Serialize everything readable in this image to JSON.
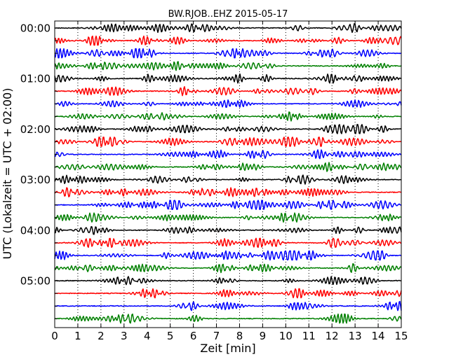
{
  "chart_data": {
    "type": "line",
    "title": "BW.RJOB..EHZ 2015-05-17",
    "xlabel": "Zeit  [min]",
    "ylabel": "UTC (Lokalzeit = UTC + 02:00)",
    "xlim": [
      0,
      15
    ],
    "x_ticks": [
      "0",
      "1",
      "2",
      "3",
      "4",
      "5",
      "6",
      "7",
      "8",
      "9",
      "10",
      "11",
      "12",
      "13",
      "14",
      "15"
    ],
    "y_tick_labels": [
      "00:00",
      "01:00",
      "02:00",
      "03:00",
      "04:00",
      "05:00"
    ],
    "row_interval_minutes": 15,
    "rows": 24,
    "grid": "vertical dotted at every minute",
    "color_cycle": [
      "#000000",
      "#ff0000",
      "#0000ff",
      "#008000"
    ]
  }
}
